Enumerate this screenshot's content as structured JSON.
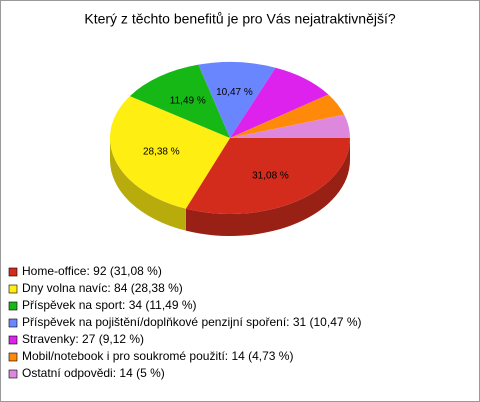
{
  "chart_data": {
    "type": "pie3d",
    "title": "Který z těchto benefitů je pro Vás nejatraktivnější?",
    "categories": [
      "Home-office",
      "Dny volna navíc",
      "Příspěvek na sport",
      "Příspěvek na pojištění/doplňkové penzijní spoření",
      "Stravenky",
      "Mobil/notebook i pro soukromé použití",
      "Ostatní odpovědi"
    ],
    "values": [
      31.08,
      28.38,
      11.49,
      10.47,
      9.12,
      4.73,
      5
    ],
    "value_labels": [
      "31,08 %",
      "28,38 %",
      "11,49 %",
      "10,47 %",
      null,
      null,
      null
    ],
    "legend": [
      "Home-office: 92 (31,08 %)",
      "Dny volna navíc: 84 (28,38 %)",
      "Příspěvek na sport: 34 (11,49 %)",
      "Příspěvek na pojištění/doplňkové penzijní spoření: 31 (10,47 %)",
      "Stravenky: 27 (9,12 %)",
      "Mobil/notebook i pro soukromé použití: 14 (4,73 %)",
      "Ostatní odpovědi: 14 (5 %)"
    ],
    "colors": [
      "#d42c1c",
      "#ffee11",
      "#16b816",
      "#6a86ff",
      "#dd22ee",
      "#ff8a0a",
      "#dd88dd"
    ]
  }
}
